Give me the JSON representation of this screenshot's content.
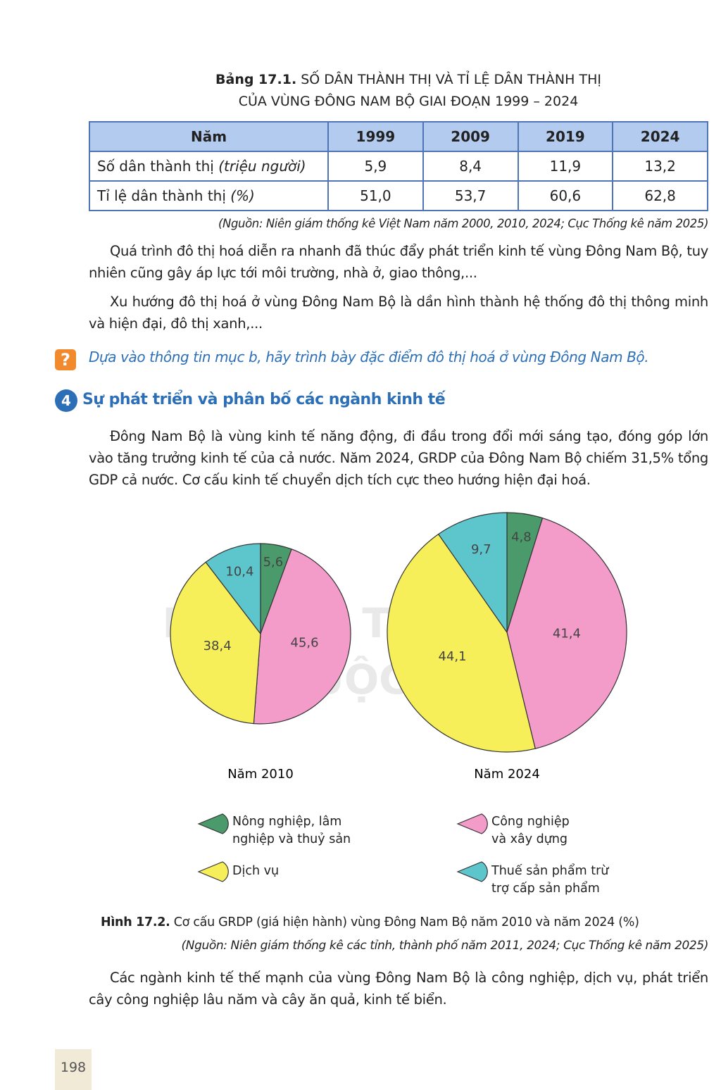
{
  "table": {
    "caption_label": "Bảng 17.1.",
    "caption": "SỐ DÂN THÀNH THỊ VÀ TỈ LỆ DÂN THÀNH THỊ CỦA VÙNG ĐÔNG NAM BỘ GIAI ĐOẠN 1999 – 2024",
    "header": [
      "Năm",
      "1999",
      "2009",
      "2019",
      "2024"
    ],
    "rows": [
      {
        "label": "Số dân thành thị",
        "unit": "(triệu người)",
        "cells": [
          "5,9",
          "8,4",
          "11,9",
          "13,2"
        ]
      },
      {
        "label": "Tỉ lệ dân thành thị",
        "unit": "(%)",
        "cells": [
          "51,0",
          "53,7",
          "60,6",
          "62,8"
        ]
      }
    ],
    "source": "(Nguồn: Niên giám thống kê Việt Nam năm 2000, 2010, 2024; Cục Thống kê năm 2025)"
  },
  "paragraphs": [
    "Quá trình đô thị hoá diễn ra nhanh đã thúc đẩy phát triển kinh tế vùng Đông Nam Bộ, tuy nhiên cũng gây áp lực tới môi trường, nhà ở, giao thông,...",
    "Xu hướng đô thị hoá ở vùng Đông Nam Bộ là dần hình thành hệ thống đô thị thông minh và hiện đại, đô thị xanh,..."
  ],
  "question": {
    "icon": "?",
    "text": "Dựa vào thông tin mục b, hãy trình bày đặc điểm đô thị hoá ở vùng Đông Nam Bộ."
  },
  "section": {
    "number": "4",
    "title": "Sự phát triển và phân bố các ngành kinh tế",
    "paragraph": "Đông Nam Bộ là vùng kinh tế năng động, đi đầu trong đổi mới sáng tạo, đóng góp lớn vào tăng trưởng kinh tế của cả nước. Năm 2024, GRDP của Đông Nam Bộ chiếm 31,5% tổng GDP cả nước. Cơ cấu kinh tế chuyển dịch tích cực theo hướng hiện đại hoá."
  },
  "watermark": [
    "KẾT NỐI TRI THỨC",
    "VỚI CUỘC SỐNG"
  ],
  "chart_data": [
    {
      "type": "pie",
      "title": "Năm 2010",
      "values": [
        5.6,
        45.6,
        38.4,
        10.4
      ],
      "value_labels": [
        "5,6",
        "45,6",
        "38,4",
        "10,4"
      ]
    },
    {
      "type": "pie",
      "title": "Năm 2024",
      "values": [
        4.8,
        41.4,
        44.1,
        9.7
      ],
      "value_labels": [
        "4,8",
        "41,4",
        "44,1",
        "9,7"
      ]
    }
  ],
  "figure": {
    "legend": {
      "labels": [
        "Nông nghiệp, lâm nghiệp và thuỷ sản",
        "Công nghiệp và xây dựng",
        "Dịch vụ",
        "Thuế sản phẩm trừ trợ cấp sản phẩm"
      ],
      "colors": [
        "#4b9a6b",
        "#f39bc9",
        "#f6ef5a",
        "#5dc6cc"
      ]
    },
    "caption_label": "Hình 17.2.",
    "caption": "Cơ cấu GRDP (giá hiện hành) vùng Đông Nam Bộ năm 2010 và năm 2024 (%)",
    "source": "(Nguồn: Niên giám thống kê các tỉnh, thành phố năm 2011, 2024; Cục Thống kê năm 2025)"
  },
  "closing": "Các ngành kinh tế thế mạnh của vùng Đông Nam Bộ là công nghiệp, dịch vụ, phát triển cây công nghiệp lâu năm và cây ăn quả, kinh tế biển.",
  "page_number": "198"
}
